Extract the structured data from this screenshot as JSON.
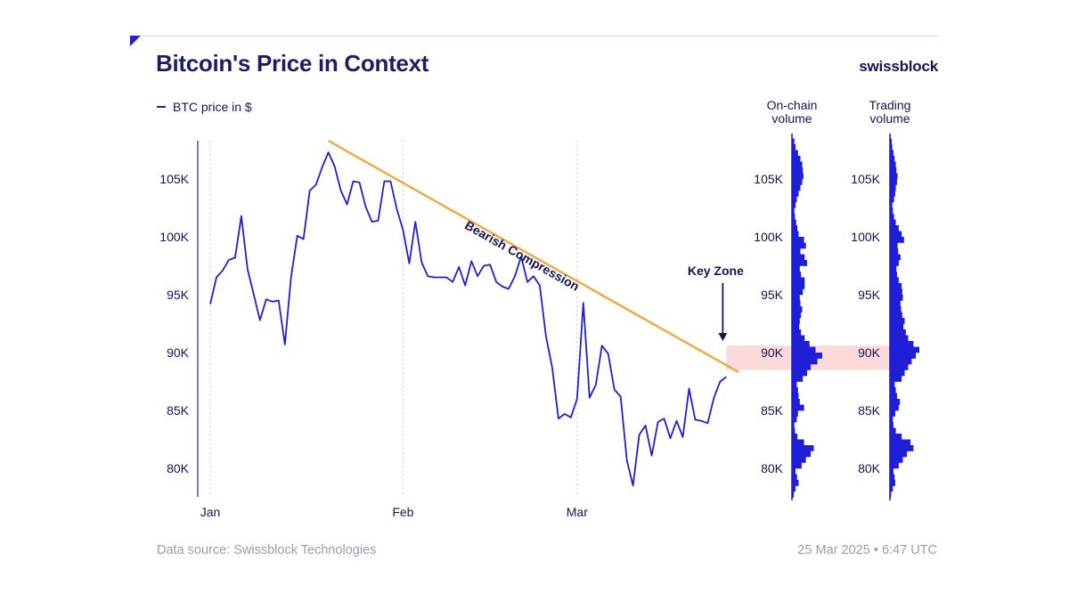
{
  "header": {
    "title": "Bitcoin's Price in Context",
    "brand": "swissblock"
  },
  "footer": {
    "source": "Data source: Swissblock Technologies",
    "date": "25 Mar 2025 • 6:47 UTC"
  },
  "colors": {
    "price_line": "#1f1fd6",
    "trend_line": "#f2a93b",
    "key_zone": "#fbd3d3",
    "volume_bars": "#1f1fd6",
    "text": "#14145a",
    "muted": "#9a9ab4"
  },
  "chart_data": [
    {
      "type": "line",
      "title": "Bitcoin's Price in Context",
      "xlabel": "",
      "ylabel": "",
      "legend": "top-left",
      "grid": "vertical dotted month separators",
      "x_ticks": [
        "Jan",
        "Feb",
        "Mar"
      ],
      "y_ticks": [
        "80K",
        "85K",
        "90K",
        "95K",
        "100K",
        "105K"
      ],
      "y_tick_values": [
        80000,
        85000,
        90000,
        95000,
        100000,
        105000
      ],
      "ylim": [
        77500,
        108500
      ],
      "xlim": [
        "2025-01-01",
        "2025-03-25"
      ],
      "series": [
        {
          "name": "BTC price in $",
          "points": [
            [
              "2025-01-01",
              94200
            ],
            [
              "2025-01-02",
              96500
            ],
            [
              "2025-01-03",
              97100
            ],
            [
              "2025-01-04",
              98000
            ],
            [
              "2025-01-05",
              98200
            ],
            [
              "2025-01-06",
              101800
            ],
            [
              "2025-01-07",
              97200
            ],
            [
              "2025-01-08",
              95000
            ],
            [
              "2025-01-09",
              92800
            ],
            [
              "2025-01-10",
              94600
            ],
            [
              "2025-01-11",
              94400
            ],
            [
              "2025-01-12",
              94500
            ],
            [
              "2025-01-13",
              90700
            ],
            [
              "2025-01-14",
              96500
            ],
            [
              "2025-01-15",
              100100
            ],
            [
              "2025-01-16",
              99800
            ],
            [
              "2025-01-17",
              104000
            ],
            [
              "2025-01-18",
              104500
            ],
            [
              "2025-01-19",
              106000
            ],
            [
              "2025-01-20",
              107300
            ],
            [
              "2025-01-21",
              106100
            ],
            [
              "2025-01-22",
              104000
            ],
            [
              "2025-01-23",
              102800
            ],
            [
              "2025-01-24",
              104800
            ],
            [
              "2025-01-25",
              104700
            ],
            [
              "2025-01-26",
              102600
            ],
            [
              "2025-01-27",
              101300
            ],
            [
              "2025-01-28",
              101400
            ],
            [
              "2025-01-29",
              104800
            ],
            [
              "2025-01-30",
              104800
            ],
            [
              "2025-01-31",
              102400
            ],
            [
              "2025-02-01",
              100600
            ],
            [
              "2025-02-02",
              97700
            ],
            [
              "2025-02-03",
              101300
            ],
            [
              "2025-02-04",
              97800
            ],
            [
              "2025-02-05",
              96600
            ],
            [
              "2025-02-06",
              96500
            ],
            [
              "2025-02-07",
              96500
            ],
            [
              "2025-02-08",
              96500
            ],
            [
              "2025-02-09",
              96100
            ],
            [
              "2025-02-10",
              97400
            ],
            [
              "2025-02-11",
              95800
            ],
            [
              "2025-02-12",
              97900
            ],
            [
              "2025-02-13",
              96600
            ],
            [
              "2025-02-14",
              97500
            ],
            [
              "2025-02-15",
              97600
            ],
            [
              "2025-02-16",
              96100
            ],
            [
              "2025-02-17",
              95700
            ],
            [
              "2025-02-18",
              95500
            ],
            [
              "2025-02-19",
              96600
            ],
            [
              "2025-02-20",
              98300
            ],
            [
              "2025-02-21",
              96100
            ],
            [
              "2025-02-22",
              96600
            ],
            [
              "2025-02-23",
              95800
            ],
            [
              "2025-02-24",
              91400
            ],
            [
              "2025-02-25",
              88700
            ],
            [
              "2025-02-26",
              84300
            ],
            [
              "2025-02-27",
              84700
            ],
            [
              "2025-02-28",
              84400
            ],
            [
              "2025-03-01",
              86000
            ],
            [
              "2025-03-02",
              94300
            ],
            [
              "2025-03-03",
              86100
            ],
            [
              "2025-03-04",
              87200
            ],
            [
              "2025-03-05",
              90600
            ],
            [
              "2025-03-06",
              89900
            ],
            [
              "2025-03-07",
              86800
            ],
            [
              "2025-03-08",
              86200
            ],
            [
              "2025-03-09",
              80700
            ],
            [
              "2025-03-10",
              78500
            ],
            [
              "2025-03-11",
              82900
            ],
            [
              "2025-03-12",
              83700
            ],
            [
              "2025-03-13",
              81100
            ],
            [
              "2025-03-14",
              84000
            ],
            [
              "2025-03-15",
              84300
            ],
            [
              "2025-03-16",
              82600
            ],
            [
              "2025-03-17",
              84100
            ],
            [
              "2025-03-18",
              82700
            ],
            [
              "2025-03-19",
              86900
            ],
            [
              "2025-03-20",
              84200
            ],
            [
              "2025-03-21",
              84100
            ],
            [
              "2025-03-22",
              83900
            ],
            [
              "2025-03-23",
              86100
            ],
            [
              "2025-03-24",
              87500
            ],
            [
              "2025-03-25",
              87900
            ]
          ]
        }
      ],
      "trend_line": {
        "label": "Bearish Compression",
        "start": [
          "2025-01-20",
          108300
        ],
        "end": [
          "2025-03-27",
          88300
        ]
      },
      "key_zone": {
        "label": "Key Zone",
        "range": [
          88500,
          90600
        ],
        "from": "2025-03-26"
      }
    },
    {
      "type": "bar",
      "title": "On-chain volume",
      "orientation": "horizontal",
      "y_ticks": [
        "80K",
        "85K",
        "90K",
        "95K",
        "100K",
        "105K"
      ],
      "ylim": [
        77500,
        108500
      ],
      "bin_size": 500,
      "bins_from": 77500,
      "values": [
        0.06,
        0.12,
        0.22,
        0.17,
        0.12,
        0.32,
        0.46,
        0.62,
        0.72,
        0.4,
        0.18,
        0.1,
        0.08,
        0.16,
        0.2,
        0.4,
        0.26,
        0.22,
        0.2,
        0.16,
        0.36,
        0.5,
        0.62,
        0.84,
        1.0,
        0.78,
        0.58,
        0.42,
        0.3,
        0.24,
        0.26,
        0.3,
        0.34,
        0.28,
        0.26,
        0.36,
        0.42,
        0.42,
        0.3,
        0.26,
        0.5,
        0.42,
        0.28,
        0.46,
        0.4,
        0.22,
        0.18,
        0.14,
        0.1,
        0.08,
        0.12,
        0.16,
        0.22,
        0.28,
        0.34,
        0.38,
        0.36,
        0.34,
        0.28,
        0.2,
        0.12,
        0.08
      ]
    },
    {
      "type": "bar",
      "title": "Trading volume",
      "orientation": "horizontal",
      "y_ticks": [
        "80K",
        "85K",
        "90K",
        "95K",
        "100K",
        "105K"
      ],
      "ylim": [
        77500,
        108500
      ],
      "bin_size": 500,
      "bins_from": 77500,
      "values": [
        0.04,
        0.1,
        0.18,
        0.16,
        0.12,
        0.3,
        0.44,
        0.58,
        0.8,
        0.7,
        0.4,
        0.2,
        0.12,
        0.1,
        0.18,
        0.3,
        0.34,
        0.24,
        0.2,
        0.16,
        0.4,
        0.5,
        0.62,
        0.74,
        0.88,
        1.0,
        0.8,
        0.62,
        0.54,
        0.46,
        0.5,
        0.42,
        0.38,
        0.36,
        0.44,
        0.42,
        0.4,
        0.3,
        0.24,
        0.22,
        0.3,
        0.36,
        0.28,
        0.26,
        0.48,
        0.4,
        0.3,
        0.2,
        0.14,
        0.1,
        0.08,
        0.14,
        0.18,
        0.2,
        0.24,
        0.26,
        0.22,
        0.2,
        0.16,
        0.12,
        0.08,
        0.06
      ]
    }
  ]
}
